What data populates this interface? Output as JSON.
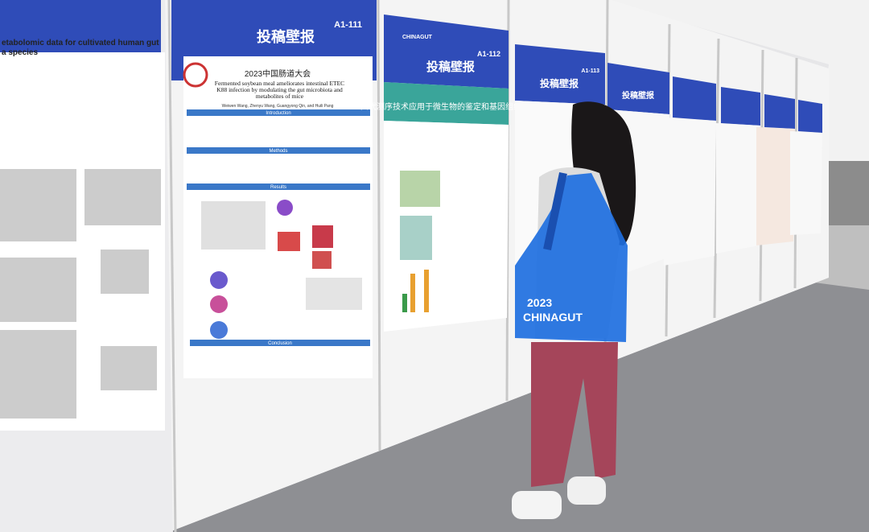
{
  "left_poster": {
    "title_lines": [
      "etabolomic data for cultivated human gut",
      "a species"
    ]
  },
  "posters": [
    {
      "header": "投稿壁报",
      "code": "A1-111",
      "conference": "2023中国肠道大会",
      "title": "Fermented soybean meal ameliorates intestinal ETEC K88 infection by modulating the gut microbiota and metabolites of mice",
      "authors": "Weiwen Wang, Zhenyu Wang, Guangyong Qin, and Huili Pang",
      "sections": [
        "Introduction",
        "Methods",
        "Results",
        "Conclusion"
      ]
    },
    {
      "header": "投稿壁报",
      "code": "A1-112",
      "brand": "CHINAGUT",
      "title": "四代测序技术应用于微生物的鉴定和基因组组装"
    },
    {
      "header": "投稿壁报",
      "code": "A1-113"
    },
    {
      "header": "投稿壁报"
    }
  ],
  "bag": {
    "year": "2023",
    "brand": "CHINAGUT"
  }
}
